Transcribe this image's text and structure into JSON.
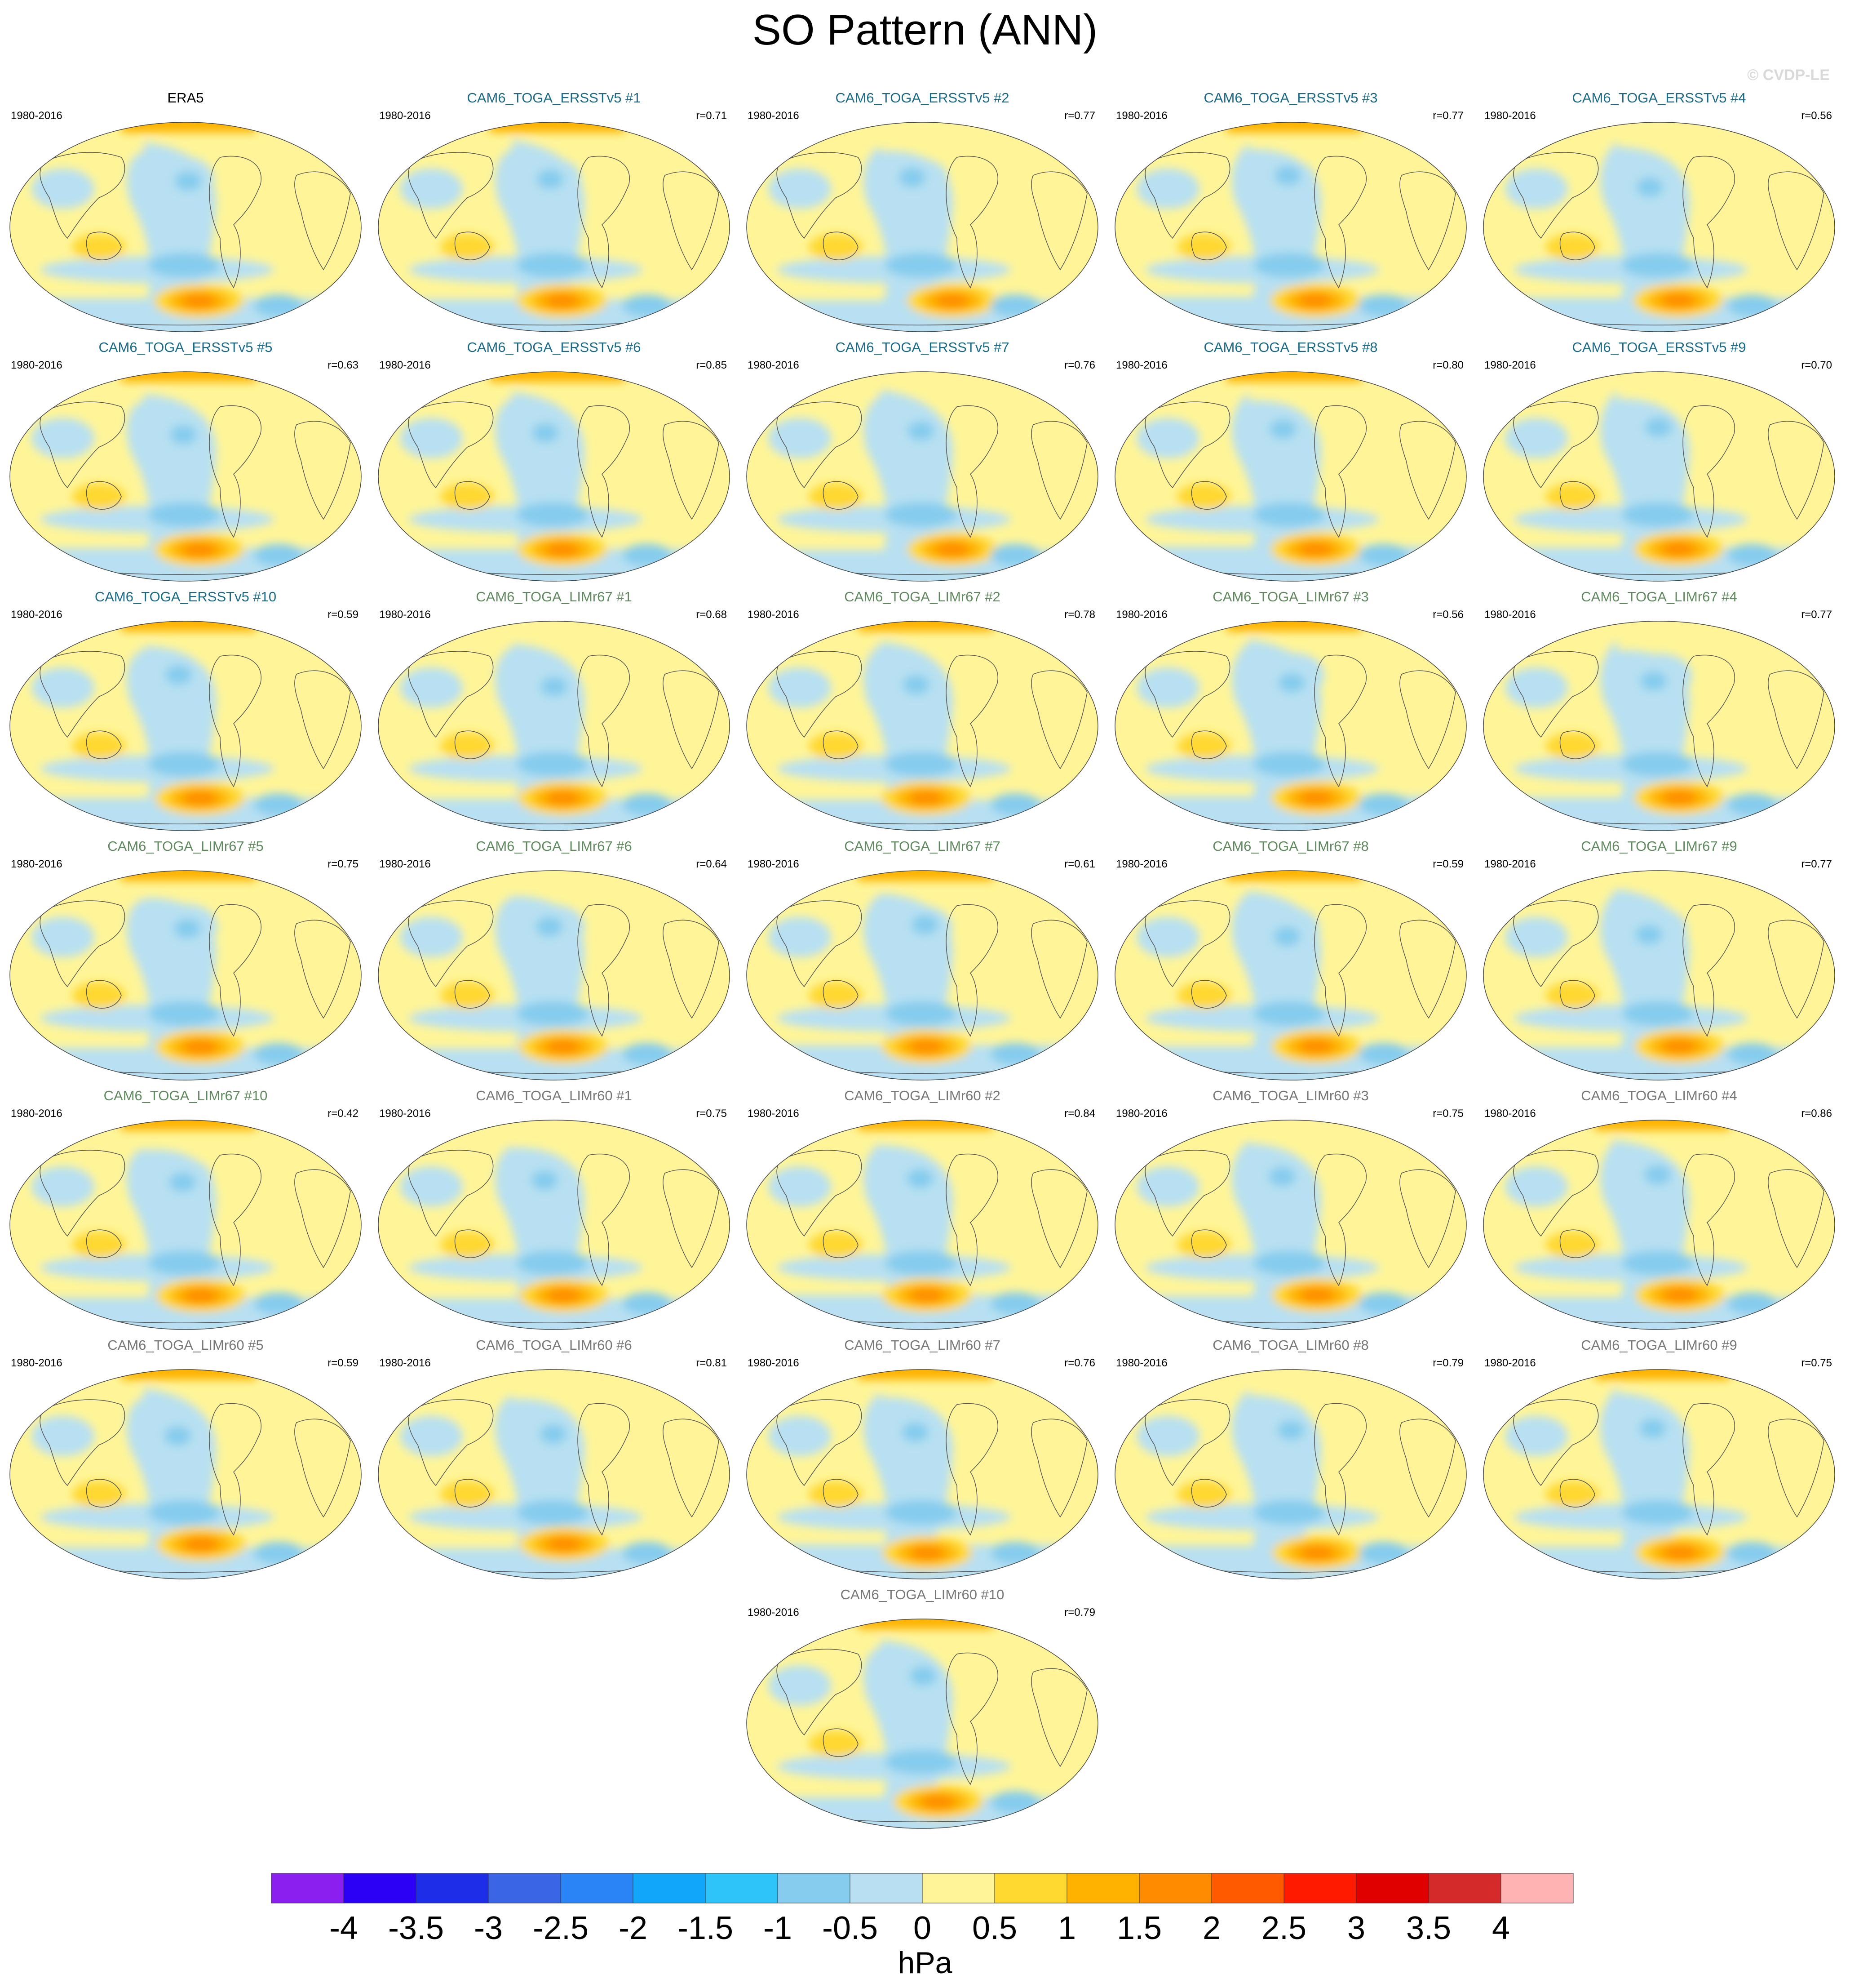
{
  "title": "SO Pattern (ANN)",
  "watermark": "© CVDP-LE",
  "colors": {
    "obs_title": "#000000",
    "ersst_title": "#1a6b8a",
    "limr67_title": "#5e8a5e",
    "limr60_title": "#777777"
  },
  "chart_data": {
    "type": "heatmap",
    "title": "SO Pattern (ANN)",
    "projection": "robinson-global",
    "units": "hPa",
    "colorbar": {
      "ticks": [
        "-4",
        "-3.5",
        "-3",
        "-2.5",
        "-2",
        "-1.5",
        "-1",
        "-0.5",
        "0",
        "0.5",
        "1",
        "1.5",
        "2",
        "2.5",
        "3",
        "3.5",
        "4"
      ],
      "levels": [
        -4,
        -3.5,
        -3,
        -2.5,
        -2,
        -1.5,
        -1,
        -0.5,
        0,
        0.5,
        1,
        1.5,
        2,
        2.5,
        3,
        3.5,
        4
      ],
      "colors": [
        "#8a1ff0",
        "#2c00f5",
        "#1e2ee8",
        "#3a66e6",
        "#2a84f5",
        "#12a6fa",
        "#2ec4fa",
        "#86ccee",
        "#b8e0f2",
        "#fff598",
        "#ffd830",
        "#ffb300",
        "#ff8c00",
        "#ff5a00",
        "#ff1a00",
        "#e00000",
        "#d42a2a",
        "#ffb3b3"
      ]
    },
    "panels": [
      {
        "title": "ERA5",
        "period": "1980-2016",
        "r": "",
        "group": "obs"
      },
      {
        "title": "CAM6_TOGA_ERSSTv5 #1",
        "period": "1980-2016",
        "r": "r=0.71",
        "group": "ersst"
      },
      {
        "title": "CAM6_TOGA_ERSSTv5 #2",
        "period": "1980-2016",
        "r": "r=0.77",
        "group": "ersst"
      },
      {
        "title": "CAM6_TOGA_ERSSTv5 #3",
        "period": "1980-2016",
        "r": "r=0.77",
        "group": "ersst"
      },
      {
        "title": "CAM6_TOGA_ERSSTv5 #4",
        "period": "1980-2016",
        "r": "r=0.56",
        "group": "ersst"
      },
      {
        "title": "CAM6_TOGA_ERSSTv5 #5",
        "period": "1980-2016",
        "r": "r=0.63",
        "group": "ersst"
      },
      {
        "title": "CAM6_TOGA_ERSSTv5 #6",
        "period": "1980-2016",
        "r": "r=0.85",
        "group": "ersst"
      },
      {
        "title": "CAM6_TOGA_ERSSTv5 #7",
        "period": "1980-2016",
        "r": "r=0.76",
        "group": "ersst"
      },
      {
        "title": "CAM6_TOGA_ERSSTv5 #8",
        "period": "1980-2016",
        "r": "r=0.80",
        "group": "ersst"
      },
      {
        "title": "CAM6_TOGA_ERSSTv5 #9",
        "period": "1980-2016",
        "r": "r=0.70",
        "group": "ersst"
      },
      {
        "title": "CAM6_TOGA_ERSSTv5 #10",
        "period": "1980-2016",
        "r": "r=0.59",
        "group": "ersst"
      },
      {
        "title": "CAM6_TOGA_LIMr67 #1",
        "period": "1980-2016",
        "r": "r=0.68",
        "group": "limr67"
      },
      {
        "title": "CAM6_TOGA_LIMr67 #2",
        "period": "1980-2016",
        "r": "r=0.78",
        "group": "limr67"
      },
      {
        "title": "CAM6_TOGA_LIMr67 #3",
        "period": "1980-2016",
        "r": "r=0.56",
        "group": "limr67"
      },
      {
        "title": "CAM6_TOGA_LIMr67 #4",
        "period": "1980-2016",
        "r": "r=0.77",
        "group": "limr67"
      },
      {
        "title": "CAM6_TOGA_LIMr67 #5",
        "period": "1980-2016",
        "r": "r=0.75",
        "group": "limr67"
      },
      {
        "title": "CAM6_TOGA_LIMr67 #6",
        "period": "1980-2016",
        "r": "r=0.64",
        "group": "limr67"
      },
      {
        "title": "CAM6_TOGA_LIMr67 #7",
        "period": "1980-2016",
        "r": "r=0.61",
        "group": "limr67"
      },
      {
        "title": "CAM6_TOGA_LIMr67 #8",
        "period": "1980-2016",
        "r": "r=0.59",
        "group": "limr67"
      },
      {
        "title": "CAM6_TOGA_LIMr67 #9",
        "period": "1980-2016",
        "r": "r=0.77",
        "group": "limr67"
      },
      {
        "title": "CAM6_TOGA_LIMr67 #10",
        "period": "1980-2016",
        "r": "r=0.42",
        "group": "limr67"
      },
      {
        "title": "CAM6_TOGA_LIMr60 #1",
        "period": "1980-2016",
        "r": "r=0.75",
        "group": "limr60"
      },
      {
        "title": "CAM6_TOGA_LIMr60 #2",
        "period": "1980-2016",
        "r": "r=0.84",
        "group": "limr60"
      },
      {
        "title": "CAM6_TOGA_LIMr60 #3",
        "period": "1980-2016",
        "r": "r=0.75",
        "group": "limr60"
      },
      {
        "title": "CAM6_TOGA_LIMr60 #4",
        "period": "1980-2016",
        "r": "r=0.86",
        "group": "limr60"
      },
      {
        "title": "CAM6_TOGA_LIMr60 #5",
        "period": "1980-2016",
        "r": "r=0.59",
        "group": "limr60"
      },
      {
        "title": "CAM6_TOGA_LIMr60 #6",
        "period": "1980-2016",
        "r": "r=0.81",
        "group": "limr60"
      },
      {
        "title": "CAM6_TOGA_LIMr60 #7",
        "period": "1980-2016",
        "r": "r=0.76",
        "group": "limr60"
      },
      {
        "title": "CAM6_TOGA_LIMr60 #8",
        "period": "1980-2016",
        "r": "r=0.79",
        "group": "limr60"
      },
      {
        "title": "CAM6_TOGA_LIMr60 #9",
        "period": "1980-2016",
        "r": "r=0.75",
        "group": "limr60"
      },
      {
        "title": "CAM6_TOGA_LIMr60 #10",
        "period": "1980-2016",
        "r": "r=0.79",
        "group": "limr60"
      }
    ]
  }
}
